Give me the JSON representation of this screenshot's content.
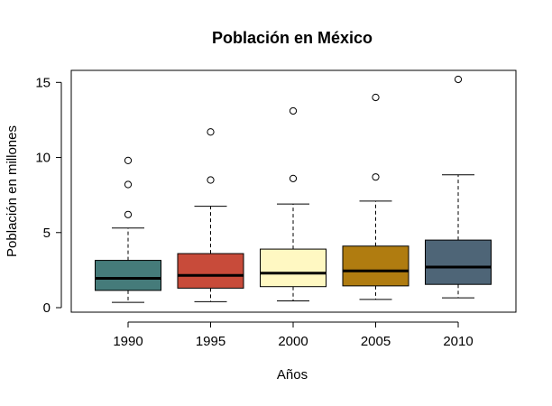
{
  "chart_data": {
    "type": "boxplot",
    "title": "Población en México",
    "xlabel": "Años",
    "ylabel": "Población en millones",
    "ylim": [
      -0.3,
      15.8
    ],
    "yticks": [
      0,
      5,
      10,
      15
    ],
    "grid": false,
    "categories": [
      "1990",
      "1995",
      "2000",
      "2005",
      "2010"
    ],
    "boxes": [
      {
        "label": "1990",
        "color": "#457B7A",
        "whisker_low": 0.35,
        "q1": 1.15,
        "median": 1.95,
        "q3": 3.15,
        "whisker_high": 5.3,
        "outliers": [
          6.2,
          8.2,
          9.8
        ]
      },
      {
        "label": "1995",
        "color": "#C84B3A",
        "whisker_low": 0.4,
        "q1": 1.3,
        "median": 2.15,
        "q3": 3.6,
        "whisker_high": 6.75,
        "outliers": [
          8.5,
          11.7
        ]
      },
      {
        "label": "2000",
        "color": "#FFF8C2",
        "whisker_low": 0.45,
        "q1": 1.4,
        "median": 2.3,
        "q3": 3.9,
        "whisker_high": 6.9,
        "outliers": [
          8.6,
          13.1
        ]
      },
      {
        "label": "2005",
        "color": "#B07C10",
        "whisker_low": 0.55,
        "q1": 1.45,
        "median": 2.45,
        "q3": 4.1,
        "whisker_high": 7.1,
        "outliers": [
          8.7,
          14.0
        ]
      },
      {
        "label": "2010",
        "color": "#4E6577",
        "whisker_low": 0.65,
        "q1": 1.55,
        "median": 2.7,
        "q3": 4.5,
        "whisker_high": 8.85,
        "outliers": [
          15.2
        ]
      }
    ]
  }
}
